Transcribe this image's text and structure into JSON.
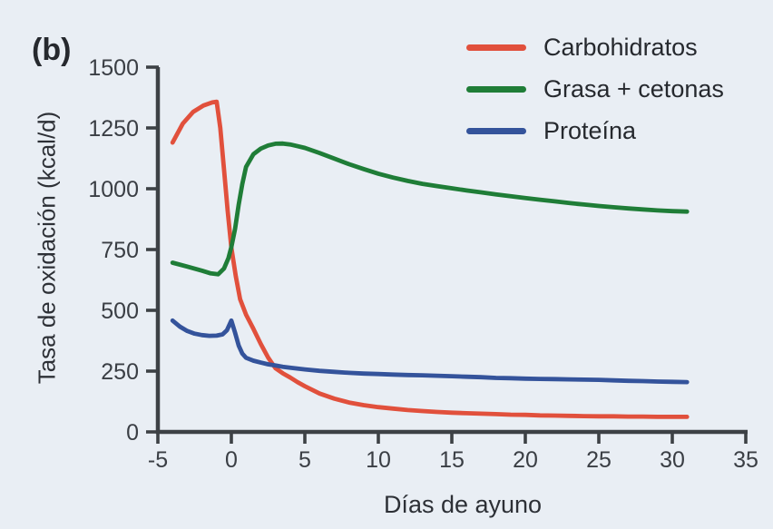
{
  "figure": {
    "panel_label": "(b)",
    "background_color": "#e9eef4"
  },
  "chart_data": {
    "type": "line",
    "title": "",
    "xlabel": "Días de ayuno",
    "ylabel": "Tasa de oxidación (kcal/d)",
    "xlim": [
      -5,
      35
    ],
    "ylim": [
      0,
      1500
    ],
    "x_ticks": [
      -5,
      0,
      5,
      10,
      15,
      20,
      25,
      30,
      35
    ],
    "y_ticks": [
      0,
      250,
      500,
      750,
      1000,
      1250,
      1500
    ],
    "grid": false,
    "legend_position": "top-right",
    "axis_color": "#3d4145",
    "text_color": "#3a3e44",
    "series": [
      {
        "name": "Carbohidratos",
        "color": "#e1503c",
        "points": [
          [
            -4,
            1190
          ],
          [
            -3.3,
            1268
          ],
          [
            -2.6,
            1316
          ],
          [
            -1.9,
            1342
          ],
          [
            -1.3,
            1355
          ],
          [
            -1,
            1358
          ],
          [
            -0.75,
            1250
          ],
          [
            -0.5,
            1080
          ],
          [
            -0.25,
            910
          ],
          [
            0,
            758
          ],
          [
            0.3,
            640
          ],
          [
            0.6,
            545
          ],
          [
            1,
            482
          ],
          [
            1.5,
            424
          ],
          [
            2,
            362
          ],
          [
            2.5,
            306
          ],
          [
            3,
            262
          ],
          [
            3.5,
            241
          ],
          [
            4,
            224
          ],
          [
            4.5,
            205
          ],
          [
            5,
            188
          ],
          [
            6,
            158
          ],
          [
            7,
            137
          ],
          [
            8,
            121
          ],
          [
            9,
            110
          ],
          [
            10,
            102
          ],
          [
            11,
            96
          ],
          [
            12,
            90
          ],
          [
            13,
            86
          ],
          [
            14,
            82
          ],
          [
            15,
            79
          ],
          [
            16,
            77
          ],
          [
            17,
            75
          ],
          [
            18,
            73
          ],
          [
            19,
            71
          ],
          [
            20,
            70
          ],
          [
            21,
            68
          ],
          [
            22,
            67
          ],
          [
            23,
            66
          ],
          [
            24,
            65
          ],
          [
            25,
            64
          ],
          [
            26,
            64
          ],
          [
            27,
            63
          ],
          [
            28,
            63
          ],
          [
            29,
            62
          ],
          [
            30,
            62
          ],
          [
            31,
            62
          ]
        ]
      },
      {
        "name": "Grasa + cetonas",
        "color": "#1f7d37",
        "points": [
          [
            -4,
            696
          ],
          [
            -3,
            680
          ],
          [
            -2,
            663
          ],
          [
            -1.4,
            652
          ],
          [
            -0.9,
            648
          ],
          [
            -0.5,
            672
          ],
          [
            -0.2,
            715
          ],
          [
            0,
            760
          ],
          [
            0.25,
            835
          ],
          [
            0.5,
            935
          ],
          [
            0.75,
            1020
          ],
          [
            1,
            1090
          ],
          [
            1.5,
            1142
          ],
          [
            2,
            1165
          ],
          [
            2.5,
            1178
          ],
          [
            3,
            1185
          ],
          [
            3.5,
            1186
          ],
          [
            4,
            1182
          ],
          [
            4.5,
            1175
          ],
          [
            5,
            1168
          ],
          [
            6,
            1147
          ],
          [
            7,
            1124
          ],
          [
            8,
            1101
          ],
          [
            9,
            1081
          ],
          [
            10,
            1062
          ],
          [
            11,
            1046
          ],
          [
            12,
            1032
          ],
          [
            13,
            1020
          ],
          [
            14,
            1011
          ],
          [
            15,
            1002
          ],
          [
            16,
            993
          ],
          [
            17,
            985
          ],
          [
            18,
            977
          ],
          [
            19,
            969
          ],
          [
            20,
            962
          ],
          [
            21,
            955
          ],
          [
            22,
            948
          ],
          [
            23,
            941
          ],
          [
            24,
            935
          ],
          [
            25,
            929
          ],
          [
            26,
            924
          ],
          [
            27,
            919
          ],
          [
            28,
            915
          ],
          [
            29,
            911
          ],
          [
            30,
            908
          ],
          [
            31,
            906
          ]
        ]
      },
      {
        "name": "Proteína",
        "color": "#34539b",
        "points": [
          [
            -4,
            458
          ],
          [
            -3.5,
            433
          ],
          [
            -3,
            415
          ],
          [
            -2.5,
            404
          ],
          [
            -2,
            398
          ],
          [
            -1.5,
            395
          ],
          [
            -1,
            396
          ],
          [
            -0.6,
            401
          ],
          [
            -0.3,
            418
          ],
          [
            0,
            458
          ],
          [
            0.25,
            408
          ],
          [
            0.5,
            355
          ],
          [
            0.75,
            322
          ],
          [
            1,
            305
          ],
          [
            1.5,
            293
          ],
          [
            2,
            285
          ],
          [
            2.5,
            278
          ],
          [
            3,
            273
          ],
          [
            3.5,
            268
          ],
          [
            4,
            264
          ],
          [
            5,
            257
          ],
          [
            6,
            251
          ],
          [
            7,
            247
          ],
          [
            8,
            243
          ],
          [
            9,
            240
          ],
          [
            10,
            238
          ],
          [
            11,
            236
          ],
          [
            12,
            234
          ],
          [
            13,
            233
          ],
          [
            14,
            231
          ],
          [
            15,
            229
          ],
          [
            16,
            227
          ],
          [
            17,
            225
          ],
          [
            18,
            222
          ],
          [
            19,
            221
          ],
          [
            20,
            219
          ],
          [
            21,
            218
          ],
          [
            22,
            217
          ],
          [
            23,
            216
          ],
          [
            24,
            215
          ],
          [
            25,
            214
          ],
          [
            26,
            212
          ],
          [
            27,
            210
          ],
          [
            28,
            209
          ],
          [
            29,
            207
          ],
          [
            30,
            206
          ],
          [
            31,
            205
          ]
        ]
      }
    ]
  }
}
